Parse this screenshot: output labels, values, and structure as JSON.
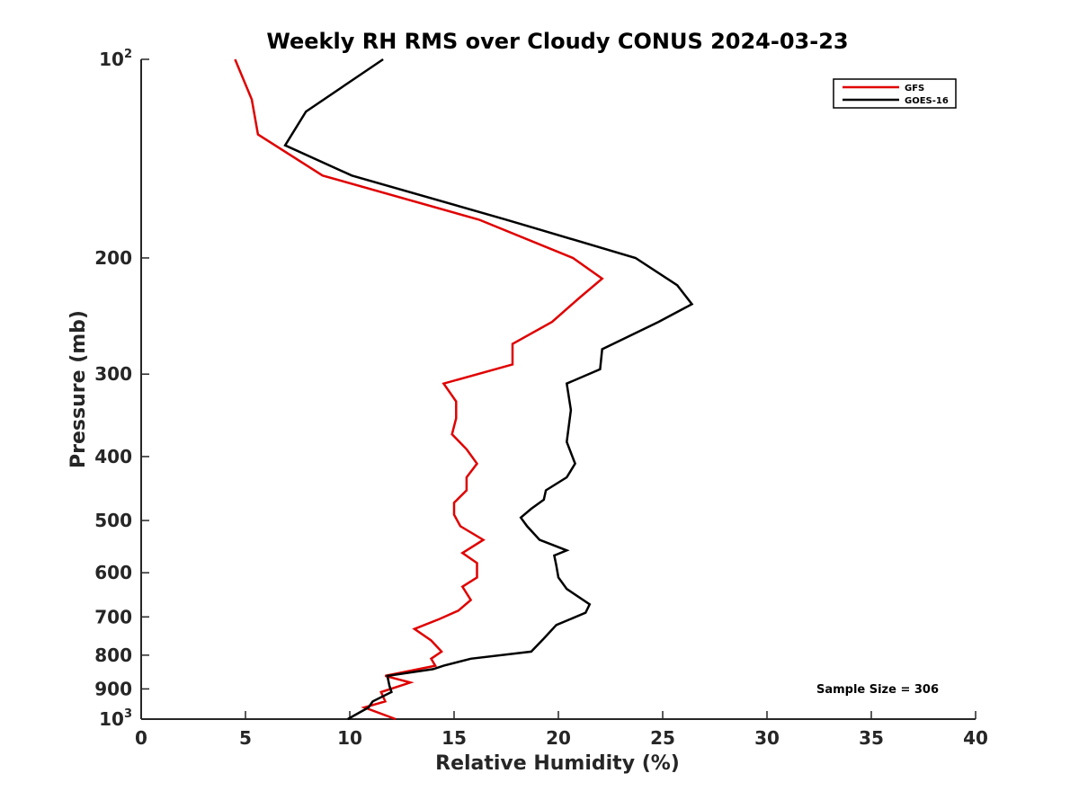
{
  "chart_data": {
    "type": "line",
    "title": "Weekly RH RMS over Cloudy CONUS 2024-03-23",
    "xlabel": "Relative Humidity (%)",
    "ylabel": "Pressure (mb)",
    "xlim": [
      0,
      40
    ],
    "ylim": [
      100,
      1000
    ],
    "y_scale": "log",
    "y_reversed": true,
    "grid": false,
    "legend_position": "top-right",
    "x_ticks": [
      "0",
      "5",
      "10",
      "15",
      "20",
      "25",
      "30",
      "35",
      "40"
    ],
    "y_ticks": [
      {
        "value": 100,
        "base": "10",
        "exp": "2"
      },
      {
        "value": 200,
        "label": "200"
      },
      {
        "value": 300,
        "label": "300"
      },
      {
        "value": 400,
        "label": "400"
      },
      {
        "value": 500,
        "label": "500"
      },
      {
        "value": 600,
        "label": "600"
      },
      {
        "value": 700,
        "label": "700"
      },
      {
        "value": 800,
        "label": "800"
      },
      {
        "value": 900,
        "label": "900"
      },
      {
        "value": 1000,
        "base": "10",
        "exp": "3"
      }
    ],
    "series": [
      {
        "name": "GFS",
        "color": "#e00000",
        "points": [
          [
            4.5,
            100
          ],
          [
            5.3,
            115
          ],
          [
            5.6,
            130
          ],
          [
            8.7,
            150
          ],
          [
            16.2,
            175
          ],
          [
            20.7,
            200
          ],
          [
            22.1,
            215
          ],
          [
            21.0,
            230
          ],
          [
            19.7,
            250
          ],
          [
            17.8,
            270
          ],
          [
            17.8,
            290
          ],
          [
            14.5,
            310
          ],
          [
            15.1,
            330
          ],
          [
            15.1,
            350
          ],
          [
            14.9,
            370
          ],
          [
            15.6,
            390
          ],
          [
            16.1,
            410
          ],
          [
            15.6,
            430
          ],
          [
            15.6,
            450
          ],
          [
            15.0,
            470
          ],
          [
            15.0,
            490
          ],
          [
            15.3,
            510
          ],
          [
            16.4,
            535
          ],
          [
            15.4,
            560
          ],
          [
            16.1,
            580
          ],
          [
            16.1,
            610
          ],
          [
            15.4,
            630
          ],
          [
            15.8,
            660
          ],
          [
            15.2,
            685
          ],
          [
            14.3,
            705
          ],
          [
            13.1,
            730
          ],
          [
            13.9,
            760
          ],
          [
            14.4,
            790
          ],
          [
            13.9,
            810
          ],
          [
            14.1,
            830
          ],
          [
            11.7,
            860
          ],
          [
            12.9,
            880
          ],
          [
            11.5,
            910
          ],
          [
            11.7,
            940
          ],
          [
            10.7,
            960
          ],
          [
            12.2,
            1000
          ]
        ]
      },
      {
        "name": "GOES-16",
        "color": "#000000",
        "points": [
          [
            11.6,
            100
          ],
          [
            7.9,
            120
          ],
          [
            6.9,
            135
          ],
          [
            10.1,
            150
          ],
          [
            17.5,
            175
          ],
          [
            23.7,
            200
          ],
          [
            25.7,
            220
          ],
          [
            26.4,
            235
          ],
          [
            24.8,
            250
          ],
          [
            22.1,
            275
          ],
          [
            22.0,
            295
          ],
          [
            20.4,
            310
          ],
          [
            20.6,
            340
          ],
          [
            20.4,
            380
          ],
          [
            20.8,
            410
          ],
          [
            20.4,
            430
          ],
          [
            19.4,
            450
          ],
          [
            19.3,
            465
          ],
          [
            18.7,
            480
          ],
          [
            18.2,
            495
          ],
          [
            18.5,
            510
          ],
          [
            19.1,
            535
          ],
          [
            20.4,
            555
          ],
          [
            19.8,
            565
          ],
          [
            19.9,
            585
          ],
          [
            20.0,
            610
          ],
          [
            20.4,
            635
          ],
          [
            21.5,
            670
          ],
          [
            21.3,
            690
          ],
          [
            19.9,
            720
          ],
          [
            19.3,
            755
          ],
          [
            18.7,
            790
          ],
          [
            15.8,
            810
          ],
          [
            14.5,
            830
          ],
          [
            14.0,
            840
          ],
          [
            11.8,
            860
          ],
          [
            11.9,
            890
          ],
          [
            12.0,
            910
          ],
          [
            11.1,
            940
          ],
          [
            10.9,
            960
          ],
          [
            9.9,
            1000
          ]
        ]
      }
    ],
    "annotation": "Sample Size = 306"
  }
}
